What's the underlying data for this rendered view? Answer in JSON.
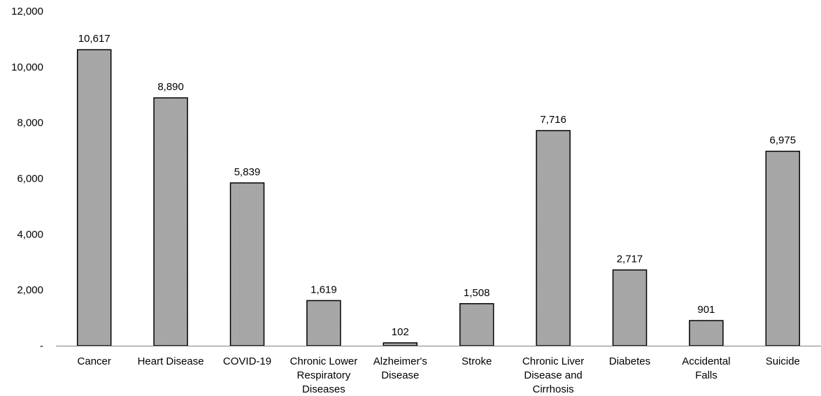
{
  "chart_data": {
    "type": "bar",
    "title": "",
    "xlabel": "",
    "ylabel": "",
    "ylim": [
      0,
      12000
    ],
    "grid": false,
    "yticks": [
      0,
      2000,
      4000,
      6000,
      8000,
      10000,
      12000
    ],
    "ytick_labels": [
      "-",
      "2,000",
      "4,000",
      "6,000",
      "8,000",
      "10,000",
      "12,000"
    ],
    "categories": [
      [
        "Cancer"
      ],
      [
        "Heart Disease"
      ],
      [
        "COVID-19"
      ],
      [
        "Chronic Lower",
        "Respiratory",
        "Diseases"
      ],
      [
        "Alzheimer's",
        "Disease"
      ],
      [
        "Stroke"
      ],
      [
        "Chronic Liver",
        "Disease and",
        "Cirrhosis"
      ],
      [
        "Diabetes"
      ],
      [
        "Accidental",
        "Falls"
      ],
      [
        "Suicide"
      ]
    ],
    "values": [
      10617,
      8890,
      5839,
      1619,
      102,
      1508,
      7716,
      2717,
      901,
      6975
    ],
    "value_labels": [
      "10,617",
      "8,890",
      "5,839",
      "1,619",
      "102",
      "1,508",
      "7,716",
      "2,717",
      "901",
      "6,975"
    ],
    "colors": {
      "bar_fill": "#a6a6a6",
      "bar_stroke": "#000000",
      "axis": "#808080"
    }
  }
}
